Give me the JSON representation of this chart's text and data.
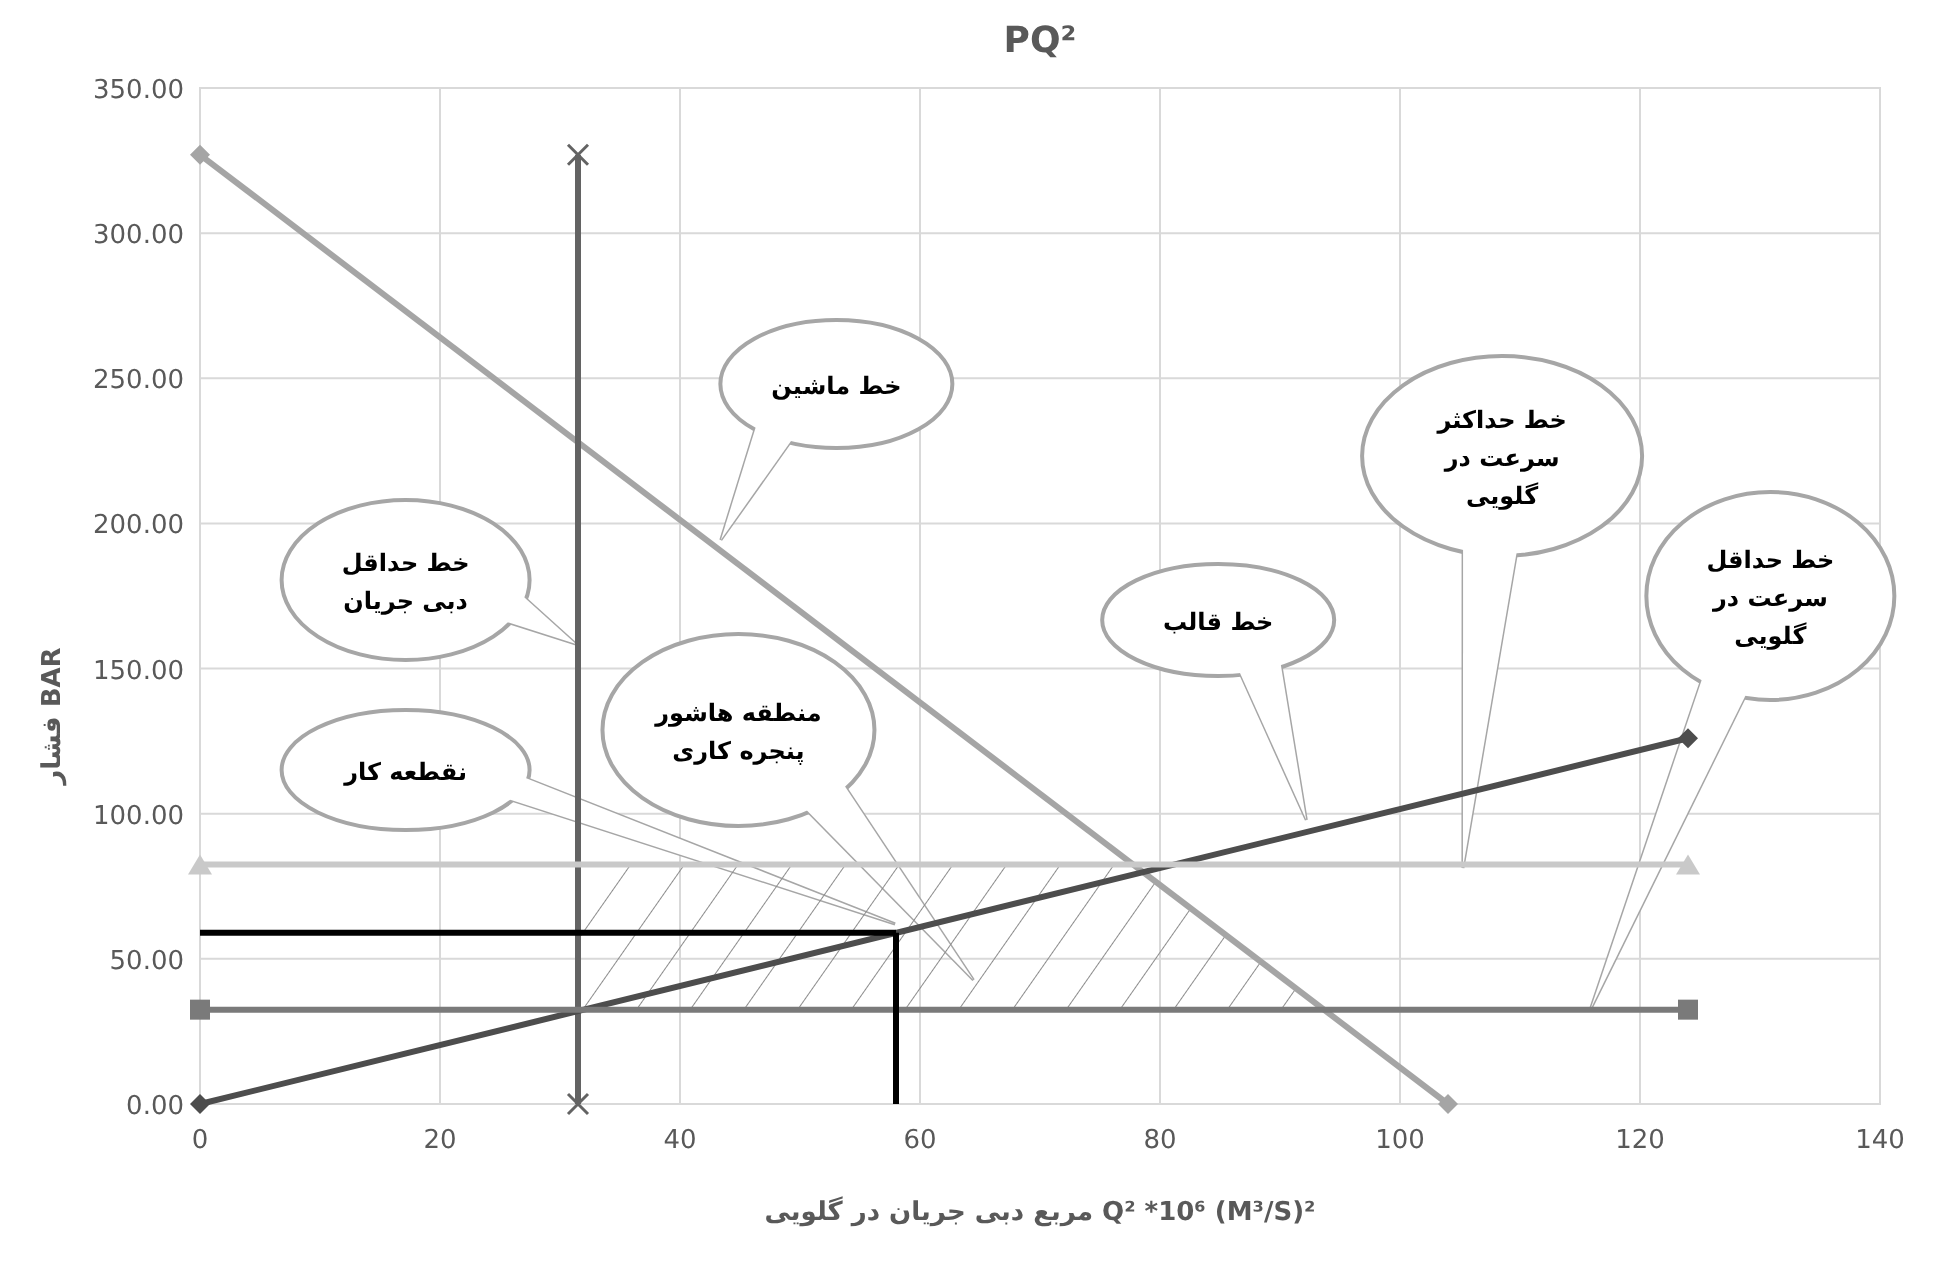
{
  "chart_data": {
    "type": "line",
    "title": "PQ²",
    "xlabel": "مربع دبی جریان در گلویی  Q² *10⁶  (M³/S)²",
    "ylabel": "فشار   BAR",
    "xlim": [
      0,
      140
    ],
    "xticks": [
      0,
      20,
      40,
      60,
      80,
      100,
      120,
      140
    ],
    "ylim": [
      0,
      350
    ],
    "yticks": [
      {
        "value": 0,
        "label": "0.00"
      },
      {
        "value": 50,
        "label": "50.00"
      },
      {
        "value": 100,
        "label": "100.00"
      },
      {
        "value": 150,
        "label": "150.00"
      },
      {
        "value": 200,
        "label": "200.00"
      },
      {
        "value": 250,
        "label": "250.00"
      },
      {
        "value": 300,
        "label": "300.00"
      },
      {
        "value": 350,
        "label": "350.00"
      }
    ],
    "grid": true,
    "series": [
      {
        "color": "#a5a5a5",
        "x": [
          0,
          104
        ],
        "values": [
          327,
          0
        ],
        "marker": "diamond"
      },
      {
        "color": "#636363",
        "x": [
          31.5,
          31.5
        ],
        "values": [
          0,
          327
        ],
        "marker": "cross"
      },
      {
        "color": "#4d4d4d",
        "x": [
          0,
          124
        ],
        "values": [
          0,
          126
        ],
        "marker": "diamond"
      },
      {
        "color": "#c9c9c9",
        "x": [
          0,
          124
        ],
        "values": [
          82.5,
          82.5
        ],
        "marker": "triangle"
      },
      {
        "color": "#7a7a7a",
        "x": [
          0,
          124
        ],
        "values": [
          32.5,
          32.5
        ],
        "marker": "square"
      },
      {
        "color": "#000000",
        "x": [
          0,
          58
        ],
        "values": [
          59,
          59
        ],
        "marker": "none"
      },
      {
        "color": "#000000",
        "x": [
          58,
          58
        ],
        "values": [
          0,
          59
        ],
        "marker": "none"
      }
    ],
    "annotations": [
      "خط ماشین",
      "خط حداقل\nدبی جریان",
      "نقطعه کار",
      "منطقه هاشور\nپنجره کاری",
      "خط قالب",
      "خط حداکثر\nسرعت در\nگلویی",
      "خط حداقل\nسرعت در\nگلویی"
    ]
  }
}
